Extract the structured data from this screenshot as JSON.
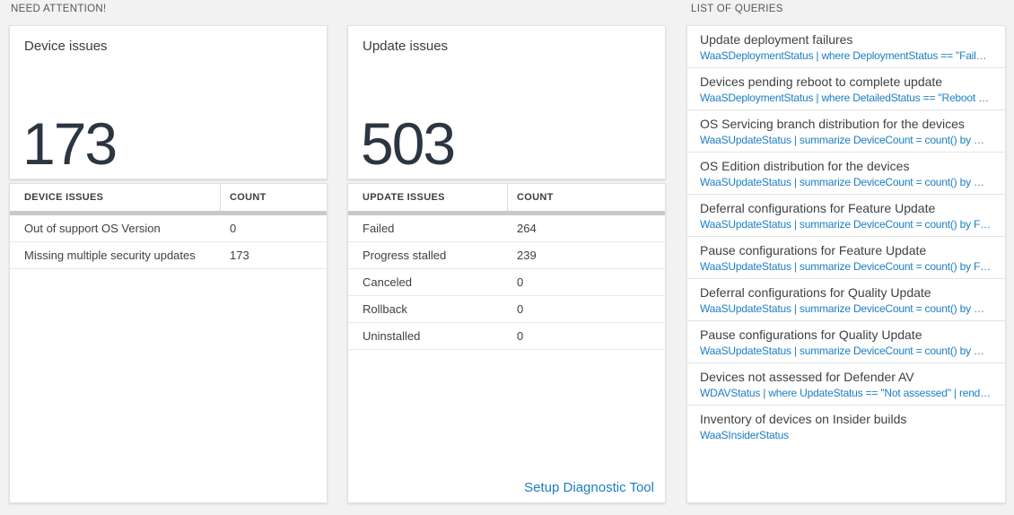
{
  "colors": {
    "page_bg": "#f2f2f2",
    "card_bg": "#ffffff",
    "link_blue": "#1b7ec2",
    "number_dark": "#2b3642",
    "thick_bar_gray": "#c9c9c9"
  },
  "need_attention": {
    "section_title": "NEED ATTENTION!",
    "device_tile": {
      "title": "Device issues",
      "value": "173"
    },
    "device_table": {
      "headers": {
        "label": "DEVICE ISSUES",
        "count": "COUNT"
      },
      "rows": [
        {
          "label": "Out of support OS Version",
          "count": "0"
        },
        {
          "label": "Missing multiple security updates",
          "count": "173"
        }
      ]
    },
    "update_tile": {
      "title": "Update issues",
      "value": "503"
    },
    "update_table": {
      "headers": {
        "label": "UPDATE ISSUES",
        "count": "COUNT"
      },
      "rows": [
        {
          "label": "Failed",
          "count": "264"
        },
        {
          "label": "Progress stalled",
          "count": "239"
        },
        {
          "label": "Canceled",
          "count": "0"
        },
        {
          "label": "Rollback",
          "count": "0"
        },
        {
          "label": "Uninstalled",
          "count": "0"
        }
      ]
    },
    "setup_link_label": "Setup Diagnostic Tool"
  },
  "queries": {
    "section_title": "LIST OF QUERIES",
    "items": [
      {
        "title": "Update deployment failures",
        "query": "WaaSDeploymentStatus | where DeploymentStatus == \"Failed\" |..."
      },
      {
        "title": "Devices pending reboot to complete update",
        "query": "WaaSDeploymentStatus | where DetailedStatus == \"Reboot pend..."
      },
      {
        "title": "OS Servicing branch distribution for the devices",
        "query": "WaaSUpdateStatus | summarize DeviceCount = count() by OSSer..."
      },
      {
        "title": "OS Edition distribution for the devices",
        "query": "WaaSUpdateStatus | summarize DeviceCount = count() by OSEdit..."
      },
      {
        "title": "Deferral configurations for Feature Update",
        "query": "WaaSUpdateStatus | summarize DeviceCount = count() by Featur..."
      },
      {
        "title": "Pause configurations for Feature Update",
        "query": "WaaSUpdateStatus | summarize DeviceCount = count() by Featur..."
      },
      {
        "title": "Deferral configurations for Quality Update",
        "query": "WaaSUpdateStatus | summarize DeviceCount = count() by Qualit..."
      },
      {
        "title": "Pause configurations for Quality Update",
        "query": "WaaSUpdateStatus | summarize DeviceCount = count() by Qualit..."
      },
      {
        "title": "Devices not assessed for Defender AV",
        "query": "WDAVStatus | where UpdateStatus == \"Not assessed\" | render ta..."
      },
      {
        "title": "Inventory of devices on Insider builds",
        "query": "WaaSInsiderStatus"
      }
    ]
  }
}
